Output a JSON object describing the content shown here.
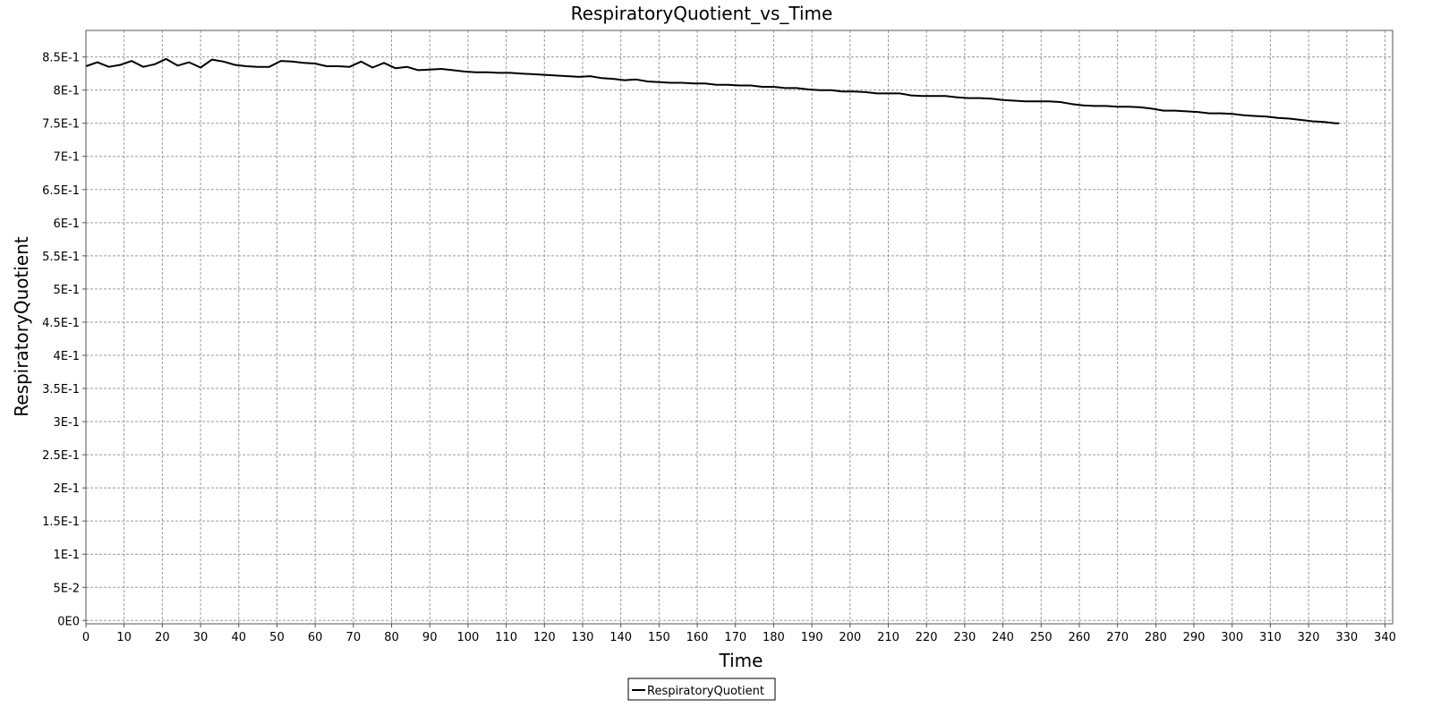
{
  "chart_data": {
    "type": "line",
    "title": "RespiratoryQuotient_vs_Time",
    "xlabel": "Time",
    "ylabel": "RespiratoryQuotient",
    "xlim": [
      0,
      342
    ],
    "ylim": [
      -0.005,
      0.89
    ],
    "x_ticks": [
      0,
      10,
      20,
      30,
      40,
      50,
      60,
      70,
      80,
      90,
      100,
      110,
      120,
      130,
      140,
      150,
      160,
      170,
      180,
      190,
      200,
      210,
      220,
      230,
      240,
      250,
      260,
      270,
      280,
      290,
      300,
      310,
      320,
      330,
      340
    ],
    "x_tick_labels": [
      "0",
      "10",
      "20",
      "30",
      "40",
      "50",
      "60",
      "70",
      "80",
      "90",
      "100",
      "110",
      "120",
      "130",
      "140",
      "150",
      "160",
      "170",
      "180",
      "190",
      "200",
      "210",
      "220",
      "230",
      "240",
      "250",
      "260",
      "270",
      "280",
      "290",
      "300",
      "310",
      "320",
      "330",
      "340"
    ],
    "y_ticks": [
      0,
      0.05,
      0.1,
      0.15,
      0.2,
      0.25,
      0.3,
      0.35,
      0.4,
      0.45,
      0.5,
      0.55,
      0.6,
      0.65,
      0.7,
      0.75,
      0.8,
      0.85
    ],
    "y_tick_labels": [
      "0E0",
      "5E-2",
      "1E-1",
      "1.5E-1",
      "2E-1",
      "2.5E-1",
      "3E-1",
      "3.5E-1",
      "4E-1",
      "4.5E-1",
      "5E-1",
      "5.5E-1",
      "6E-1",
      "6.5E-1",
      "7E-1",
      "7.5E-1",
      "8E-1",
      "8.5E-1"
    ],
    "grid": true,
    "legend_position": "bottom-center",
    "series": [
      {
        "name": "RespiratoryQuotient",
        "color": "#000000",
        "x": [
          0,
          3,
          6,
          9,
          12,
          15,
          18,
          21,
          24,
          27,
          30,
          33,
          36,
          39,
          42,
          45,
          48,
          51,
          54,
          57,
          60,
          63,
          66,
          69,
          72,
          75,
          78,
          81,
          84,
          87,
          90,
          93,
          96,
          99,
          102,
          105,
          108,
          111,
          114,
          117,
          120,
          123,
          126,
          129,
          132,
          135,
          138,
          141,
          144,
          147,
          150,
          153,
          156,
          159,
          162,
          165,
          168,
          171,
          174,
          177,
          180,
          183,
          186,
          189,
          192,
          195,
          198,
          201,
          204,
          207,
          210,
          213,
          216,
          219,
          222,
          225,
          228,
          231,
          234,
          237,
          240,
          243,
          246,
          249,
          252,
          255,
          258,
          261,
          264,
          267,
          270,
          273,
          276,
          279,
          282,
          285,
          288,
          291,
          294,
          297,
          300,
          303,
          306,
          309,
          312,
          315,
          318,
          321,
          324,
          327,
          328
        ],
        "y": [
          0.836,
          0.842,
          0.835,
          0.838,
          0.844,
          0.835,
          0.839,
          0.847,
          0.837,
          0.842,
          0.834,
          0.846,
          0.843,
          0.838,
          0.836,
          0.835,
          0.835,
          0.844,
          0.843,
          0.841,
          0.84,
          0.836,
          0.836,
          0.835,
          0.843,
          0.834,
          0.841,
          0.833,
          0.835,
          0.83,
          0.831,
          0.832,
          0.83,
          0.828,
          0.827,
          0.827,
          0.826,
          0.826,
          0.825,
          0.824,
          0.823,
          0.822,
          0.821,
          0.82,
          0.821,
          0.818,
          0.817,
          0.815,
          0.816,
          0.813,
          0.812,
          0.811,
          0.811,
          0.81,
          0.81,
          0.808,
          0.808,
          0.807,
          0.807,
          0.805,
          0.805,
          0.803,
          0.803,
          0.801,
          0.8,
          0.8,
          0.798,
          0.798,
          0.797,
          0.795,
          0.795,
          0.795,
          0.792,
          0.791,
          0.791,
          0.791,
          0.789,
          0.788,
          0.788,
          0.787,
          0.785,
          0.784,
          0.783,
          0.783,
          0.783,
          0.782,
          0.779,
          0.777,
          0.776,
          0.776,
          0.775,
          0.775,
          0.774,
          0.772,
          0.769,
          0.769,
          0.768,
          0.767,
          0.765,
          0.765,
          0.764,
          0.762,
          0.761,
          0.76,
          0.758,
          0.757,
          0.755,
          0.753,
          0.752,
          0.75,
          0.75
        ]
      }
    ]
  }
}
